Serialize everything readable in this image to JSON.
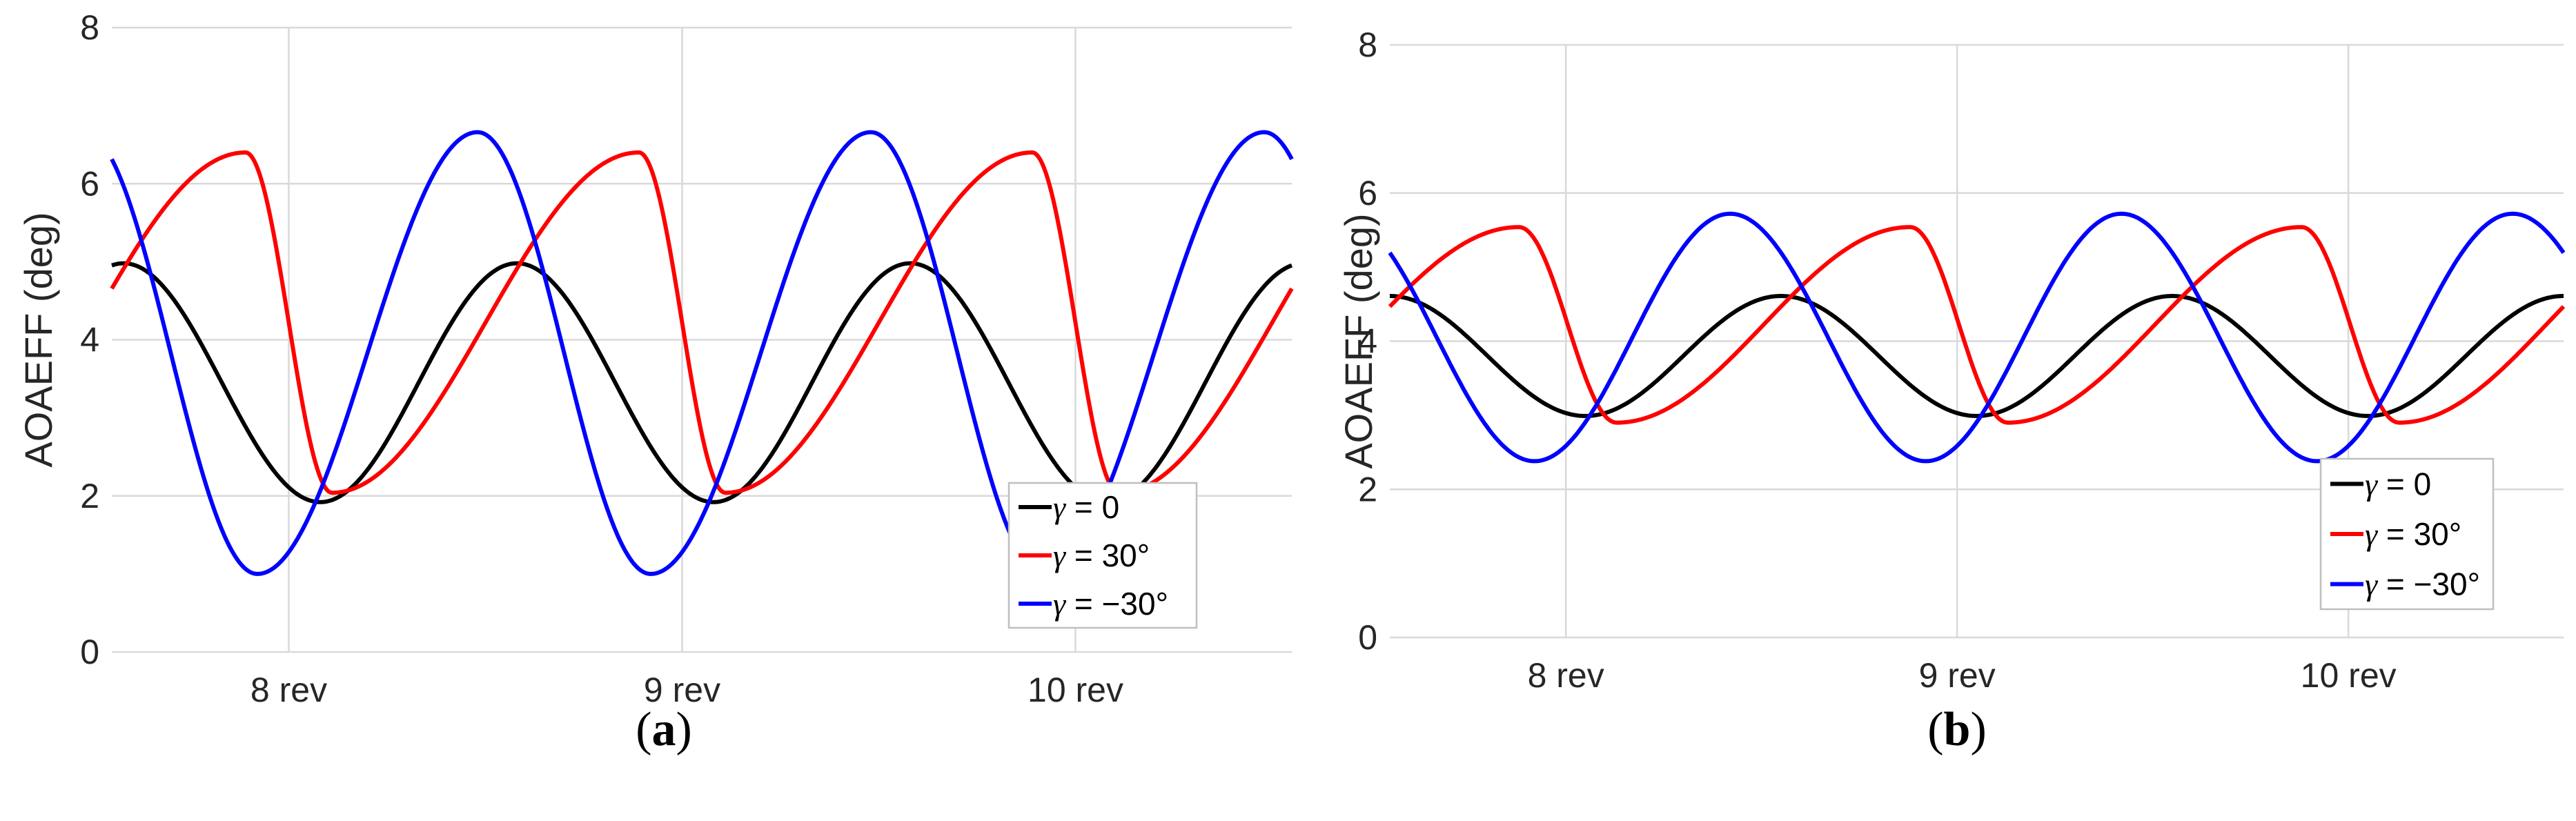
{
  "chart_data": [
    {
      "panel_label": "a",
      "type": "line",
      "ylabel": "AOAEFF (deg)",
      "xlabel": "",
      "ylim": [
        0,
        8
      ],
      "yticks": [
        "0",
        "2",
        "4",
        "6",
        "8"
      ],
      "xlim": [
        7.55,
        10.55
      ],
      "xticks": [
        {
          "value": 8,
          "label": "8 rev"
        },
        {
          "value": 9,
          "label": "9 rev"
        },
        {
          "value": 10,
          "label": "10 rev"
        }
      ],
      "grid": true,
      "legend_position": "bottom-right",
      "series": [
        {
          "name": "γ = 0",
          "legend_symbol": "γ",
          "legend_text": " = 0",
          "color": "#000000",
          "phase": 0.08,
          "mean": 3.45,
          "amplitude": 1.53,
          "skew": 0.5
        },
        {
          "name": "γ = 30°",
          "legend_symbol": "γ",
          "legend_text": " = 30°",
          "color": "#ff0000",
          "phase": 0.11,
          "mean": 4.22,
          "amplitude": 2.18,
          "skew": 0.78
        },
        {
          "name": "γ = −30°",
          "legend_symbol": "γ",
          "legend_text": " = −30°",
          "color": "#0000ff",
          "phase": -0.08,
          "mean": 3.83,
          "amplitude": 2.83,
          "skew": 0.56
        }
      ]
    },
    {
      "panel_label": "b",
      "type": "line",
      "ylabel": "AOAEFF (deg)",
      "xlabel": "",
      "ylim": [
        0,
        8
      ],
      "yticks": [
        "0",
        "2",
        "4",
        "6",
        "8"
      ],
      "xlim": [
        7.55,
        10.55
      ],
      "xticks": [
        {
          "value": 8,
          "label": "8 rev"
        },
        {
          "value": 9,
          "label": "9 rev"
        },
        {
          "value": 10,
          "label": "10 rev"
        }
      ],
      "grid": true,
      "legend_position": "bottom-right",
      "series": [
        {
          "name": "γ = 0",
          "legend_symbol": "γ",
          "legend_text": " = 0",
          "color": "#000000",
          "phase": 0.05,
          "mean": 3.8,
          "amplitude": 0.81,
          "skew": 0.5
        },
        {
          "name": "γ = 30°",
          "legend_symbol": "γ",
          "legend_text": " = 30°",
          "color": "#ff0000",
          "phase": 0.13,
          "mean": 4.22,
          "amplitude": 1.32,
          "skew": 0.75
        },
        {
          "name": "γ = −30°",
          "legend_symbol": "γ",
          "legend_text": " = −30°",
          "color": "#0000ff",
          "phase": -0.08,
          "mean": 4.05,
          "amplitude": 1.67,
          "skew": 0.5
        }
      ]
    }
  ],
  "captions": [
    {
      "open": "(",
      "letter": "a",
      "close": ")"
    },
    {
      "open": "(",
      "letter": "b",
      "close": ")"
    }
  ]
}
